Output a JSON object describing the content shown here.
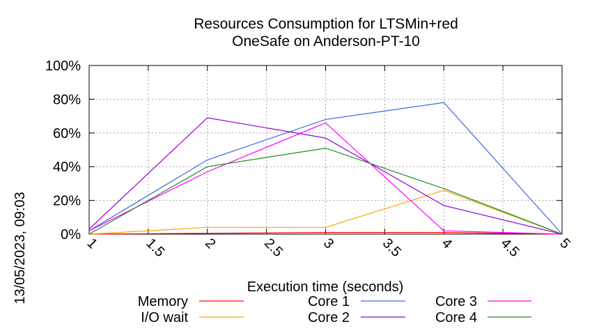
{
  "chart_data": {
    "type": "line",
    "title_line1": "Resources Consumption for LTSMin+red",
    "title_line2": "OneSafe on Anderson-PT-10",
    "xlabel": "Execution time (seconds)",
    "ylabel": "",
    "side_label": "13/05/2023, 09:03",
    "xlim": [
      1,
      5
    ],
    "ylim": [
      0,
      100
    ],
    "x_ticks": [
      "1",
      "1.5",
      "2",
      "2.5",
      "3",
      "3.5",
      "4",
      "4.5",
      "5"
    ],
    "y_ticks": [
      "0%",
      "20%",
      "40%",
      "60%",
      "80%",
      "100%"
    ],
    "grid": true,
    "legend_position": "bottom",
    "x": [
      1,
      2,
      3,
      4,
      5
    ],
    "series": [
      {
        "name": "Memory",
        "color": "#ff0000",
        "values": [
          0,
          0.5,
          1,
          1,
          0
        ]
      },
      {
        "name": "I/O wait",
        "color": "#ffa500",
        "values": [
          0,
          4,
          4,
          26,
          0
        ]
      },
      {
        "name": "Core 1",
        "color": "#4169e1",
        "values": [
          2,
          44,
          68,
          78,
          0
        ]
      },
      {
        "name": "Core 2",
        "color": "#9400d3",
        "values": [
          3,
          69,
          57,
          17,
          0
        ]
      },
      {
        "name": "Core 3",
        "color": "#ff00ff",
        "values": [
          2,
          37,
          66,
          2,
          0
        ]
      },
      {
        "name": "Core 4",
        "color": "#228b22",
        "values": [
          0,
          40,
          51,
          27,
          0
        ]
      }
    ]
  }
}
